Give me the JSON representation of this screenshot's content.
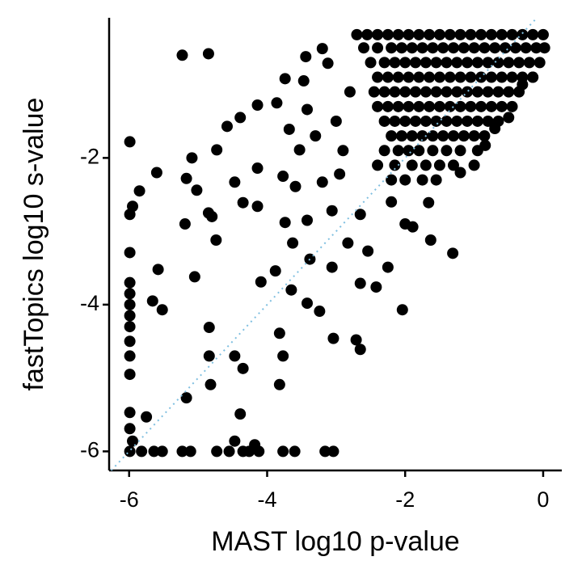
{
  "chart_data": {
    "type": "scatter",
    "x_label": "MAST log10 p-value",
    "y_label": "fastTopics log10 s-value",
    "xlim": [
      -6.29,
      0.27
    ],
    "xticks": [
      -6,
      -4,
      -2,
      0
    ],
    "ylim": [
      -6.26,
      -0.09
    ],
    "yticks": [
      -6,
      -4,
      -2
    ],
    "color": "#000000",
    "diagonal": {
      "slope": 1,
      "intercept": 0,
      "color": "#7fbfe0",
      "style": "dotted"
    },
    "x": [
      -2.7,
      -2.55,
      -2.4,
      -2.25,
      -2.1,
      -1.95,
      -1.8,
      -1.65,
      -1.5,
      -1.35,
      -1.2,
      -1.05,
      -0.9,
      -0.75,
      -0.6,
      -0.45,
      -0.3,
      -0.15,
      0,
      -2.6,
      -2.4,
      -2.2,
      -2.05,
      -1.9,
      -1.75,
      -1.6,
      -1.45,
      -1.3,
      -1.15,
      -1.0,
      -0.85,
      -0.7,
      -0.55,
      -0.4,
      -0.25,
      -0.1,
      0.02,
      -2.5,
      -2.3,
      -2.15,
      -2.0,
      -1.85,
      -1.7,
      -1.55,
      -1.4,
      -1.25,
      -1.1,
      -0.95,
      -0.8,
      -0.65,
      -0.5,
      -0.35,
      -0.2,
      -0.05,
      -2.4,
      -2.25,
      -2.1,
      -1.95,
      -1.8,
      -1.65,
      -1.5,
      -1.35,
      -1.2,
      -1.05,
      -0.9,
      -0.75,
      -0.6,
      -0.45,
      -0.3,
      -0.15,
      -2.45,
      -2.3,
      -2.15,
      -2.0,
      -1.85,
      -1.7,
      -1.55,
      -1.4,
      -1.25,
      -1.1,
      -0.95,
      -0.8,
      -0.65,
      -0.5,
      -0.35,
      -2.4,
      -2.25,
      -2.1,
      -1.95,
      -1.8,
      -1.65,
      -1.5,
      -1.35,
      -1.2,
      -1.05,
      -0.9,
      -0.75,
      -0.6,
      -0.45,
      -2.3,
      -2.15,
      -2.0,
      -1.85,
      -1.7,
      -1.55,
      -1.4,
      -1.25,
      -1.1,
      -0.95,
      -0.8,
      -0.65,
      -2.2,
      -2.05,
      -1.9,
      -1.75,
      -1.6,
      -1.45,
      -1.3,
      -1.15,
      -1.0,
      -0.85,
      -2.3,
      -2.1,
      -1.95,
      -1.8,
      -1.6,
      -1.4,
      -1.2,
      -0.95,
      -2.4,
      -2.15,
      -1.9,
      -1.7,
      -1.5,
      -1.3,
      -2.2,
      -2.0,
      -1.75,
      -1.55,
      -5.23,
      -4.85,
      -5.99,
      -5.85,
      -5.95,
      -5.99,
      -5.99,
      -5.6,
      -5.09,
      -5.17,
      -5.02,
      -5.58,
      -5.66,
      -5.52,
      -5.05,
      -5.19,
      -4.85,
      -4.74,
      -4.73,
      -4.8,
      -4.58,
      -4.39,
      -4.14,
      -3.86,
      -3.74,
      -3.44,
      -3.2,
      -3.12,
      -3.47,
      -4.35,
      -4.14,
      -4.47,
      -4.14,
      -3.77,
      -3.68,
      -3.42,
      -3.53,
      -3.59,
      -3.74,
      -3.63,
      -3.38,
      -3.88,
      -4.09,
      -3.65,
      -3.42,
      -3.24,
      -3.42,
      -3.06,
      -3.2,
      -2.95,
      -2.65,
      -2.83,
      -2.54,
      -2.42,
      -2.65,
      -3.06,
      -2.71,
      -2.65,
      -3.04,
      -3.82,
      -3.77,
      -3.82,
      -4.35,
      -4.47,
      -4.84,
      -4.84,
      -4.82,
      -4.39,
      -5.17,
      -5.75,
      -5.99,
      -5.99,
      -5.95,
      -5.99,
      -5.99,
      -5.99,
      -5.99,
      -5.99,
      -5.99,
      -5.99,
      -5.99,
      -5.99,
      -5.82,
      -5.64,
      -5.52,
      -5.23,
      -5.11,
      -4.73,
      -4.55,
      -4.35,
      -4.26,
      -4.12,
      -3.77,
      -3.6,
      -3.16,
      -3.04,
      -4.47,
      -4.18,
      -2.04,
      -1.63,
      -1.31,
      -2.25,
      -1.89,
      -1.66,
      -0.84,
      -3.0,
      -2.9,
      -2.8,
      -3.3,
      -2.2,
      -2.0,
      -1.2,
      -1.0,
      -0.7,
      -0.5,
      -0.3,
      -0.15
    ],
    "values": [
      -0.32,
      -0.32,
      -0.32,
      -0.32,
      -0.32,
      -0.32,
      -0.32,
      -0.32,
      -0.32,
      -0.32,
      -0.32,
      -0.32,
      -0.32,
      -0.32,
      -0.32,
      -0.32,
      -0.32,
      -0.32,
      -0.32,
      -0.5,
      -0.5,
      -0.5,
      -0.5,
      -0.5,
      -0.5,
      -0.5,
      -0.5,
      -0.5,
      -0.5,
      -0.5,
      -0.5,
      -0.5,
      -0.5,
      -0.5,
      -0.5,
      -0.5,
      -0.5,
      -0.7,
      -0.7,
      -0.7,
      -0.7,
      -0.7,
      -0.7,
      -0.7,
      -0.7,
      -0.7,
      -0.7,
      -0.7,
      -0.7,
      -0.7,
      -0.7,
      -0.7,
      -0.7,
      -0.7,
      -0.9,
      -0.9,
      -0.9,
      -0.9,
      -0.9,
      -0.9,
      -0.9,
      -0.9,
      -0.9,
      -0.9,
      -0.9,
      -0.9,
      -0.9,
      -0.9,
      -0.9,
      -0.9,
      -1.1,
      -1.1,
      -1.1,
      -1.1,
      -1.1,
      -1.1,
      -1.1,
      -1.1,
      -1.1,
      -1.1,
      -1.1,
      -1.1,
      -1.1,
      -1.1,
      -1.1,
      -1.3,
      -1.3,
      -1.3,
      -1.3,
      -1.3,
      -1.3,
      -1.3,
      -1.3,
      -1.3,
      -1.3,
      -1.3,
      -1.3,
      -1.3,
      -1.3,
      -1.5,
      -1.5,
      -1.5,
      -1.5,
      -1.5,
      -1.5,
      -1.5,
      -1.5,
      -1.5,
      -1.5,
      -1.5,
      -1.5,
      -1.7,
      -1.7,
      -1.7,
      -1.7,
      -1.7,
      -1.7,
      -1.7,
      -1.7,
      -1.7,
      -1.7,
      -1.9,
      -1.9,
      -1.9,
      -1.9,
      -1.9,
      -1.9,
      -1.9,
      -1.9,
      -2.1,
      -2.1,
      -2.1,
      -2.1,
      -2.1,
      -2.1,
      -2.3,
      -2.3,
      -2.3,
      -2.3,
      -0.6,
      -0.58,
      -1.78,
      -2.45,
      -2.66,
      -2.77,
      -3.29,
      -2.2,
      -2.0,
      -2.28,
      -2.44,
      -3.52,
      -3.95,
      -4.07,
      -3.62,
      -2.9,
      -2.75,
      -3.12,
      -1.89,
      -2.8,
      -1.57,
      -1.45,
      -1.28,
      -1.25,
      -0.92,
      -0.62,
      -0.51,
      -0.71,
      -0.95,
      -2.61,
      -2.66,
      -2.33,
      -2.14,
      -2.25,
      -1.61,
      -1.34,
      -1.89,
      -2.39,
      -2.88,
      -3.16,
      -3.38,
      -3.54,
      -3.69,
      -3.8,
      -3.98,
      -4.09,
      -2.85,
      -2.72,
      -2.33,
      -2.22,
      -2.77,
      -3.16,
      -3.27,
      -3.76,
      -3.71,
      -3.49,
      -4.48,
      -4.61,
      -4.46,
      -4.39,
      -4.7,
      -5.09,
      -4.87,
      -4.7,
      -4.31,
      -4.7,
      -5.09,
      -5.49,
      -5.27,
      -5.53,
      -5.47,
      -5.69,
      -5.86,
      -3.7,
      -3.85,
      -4.0,
      -4.15,
      -4.3,
      -4.5,
      -4.7,
      -4.95,
      -6,
      -6,
      -6,
      -6,
      -6,
      -6,
      -6,
      -6,
      -6,
      -6,
      -6,
      -6,
      -6,
      -6,
      -6,
      -5.86,
      -5.91,
      -4.07,
      -3.12,
      -3.3,
      -3.49,
      -2.94,
      -2.61,
      -1.83,
      -1.5,
      -1.9,
      -1.1,
      -1.7,
      -2.6,
      -2.9,
      -2.2,
      -2.1,
      -1.6,
      -1.45,
      -1.0,
      -0.9
    ]
  }
}
